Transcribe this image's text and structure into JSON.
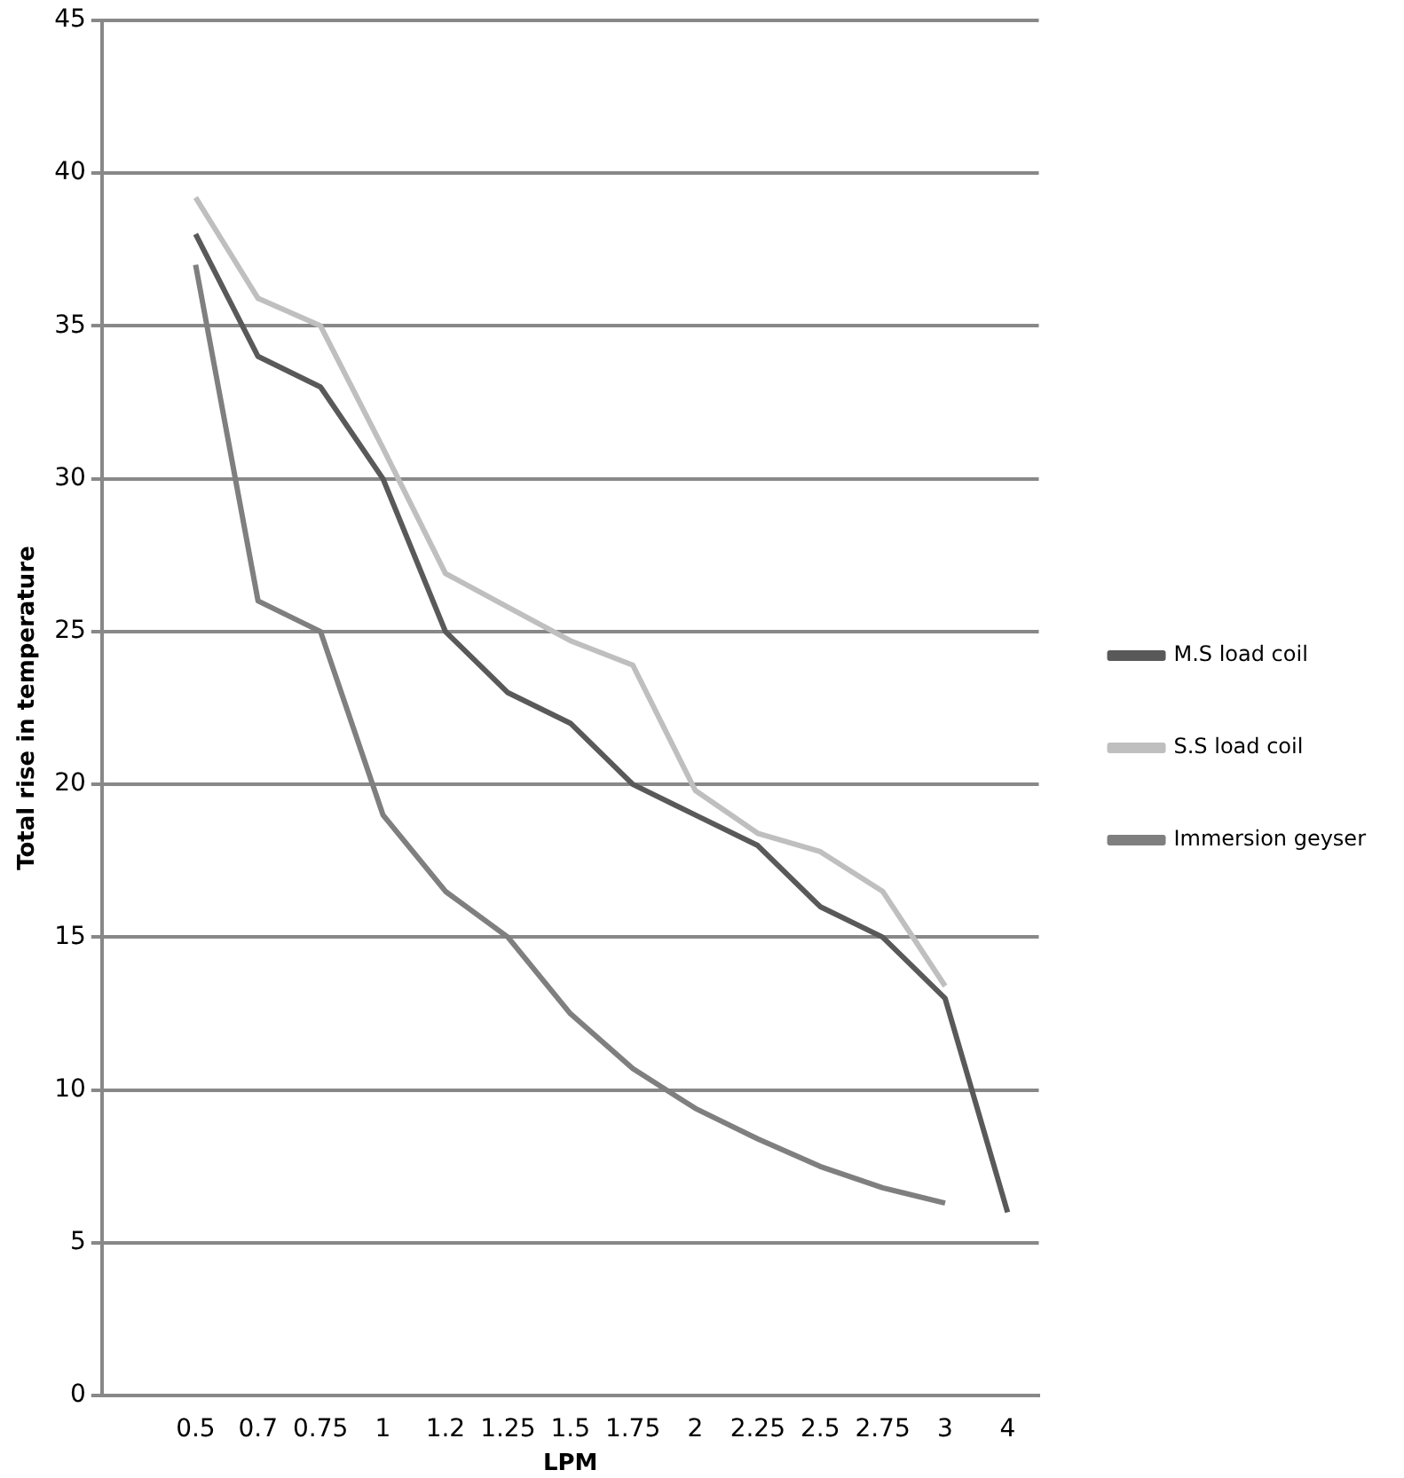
{
  "chart_data": {
    "type": "line",
    "xlabel": "LPM",
    "ylabel": "Total rise in temperature",
    "categories": [
      null,
      "0.5",
      "0.7",
      "0.75",
      "1",
      "1.2",
      "1.25",
      "1.5",
      "1.75",
      "2",
      "2.25",
      "2.5",
      "2.75",
      "3",
      "4"
    ],
    "ylim": [
      0,
      45
    ],
    "yticks": [
      0,
      5,
      10,
      15,
      20,
      25,
      30,
      35,
      40,
      45
    ],
    "grid": "y",
    "legend": "right",
    "marker": "none",
    "series": [
      {
        "name": "M.S load coil",
        "color": "#595959",
        "values": [
          null,
          38,
          34,
          33,
          30,
          25,
          23,
          22,
          20,
          19,
          18,
          16,
          15,
          13,
          6
        ]
      },
      {
        "name": "S.S load coil",
        "color": "#bfbfbf",
        "values": [
          null,
          39.2,
          35.9,
          35,
          31,
          26.9,
          25.8,
          24.7,
          23.9,
          19.8,
          18.4,
          17.8,
          16.5,
          13.4,
          null
        ]
      },
      {
        "name": "Immersion geyser",
        "color": "#7f7f7f",
        "values": [
          null,
          37,
          26,
          25,
          19,
          16.5,
          15,
          12.5,
          10.7,
          9.4,
          8.4,
          7.5,
          6.8,
          6.3,
          null
        ]
      }
    ]
  }
}
